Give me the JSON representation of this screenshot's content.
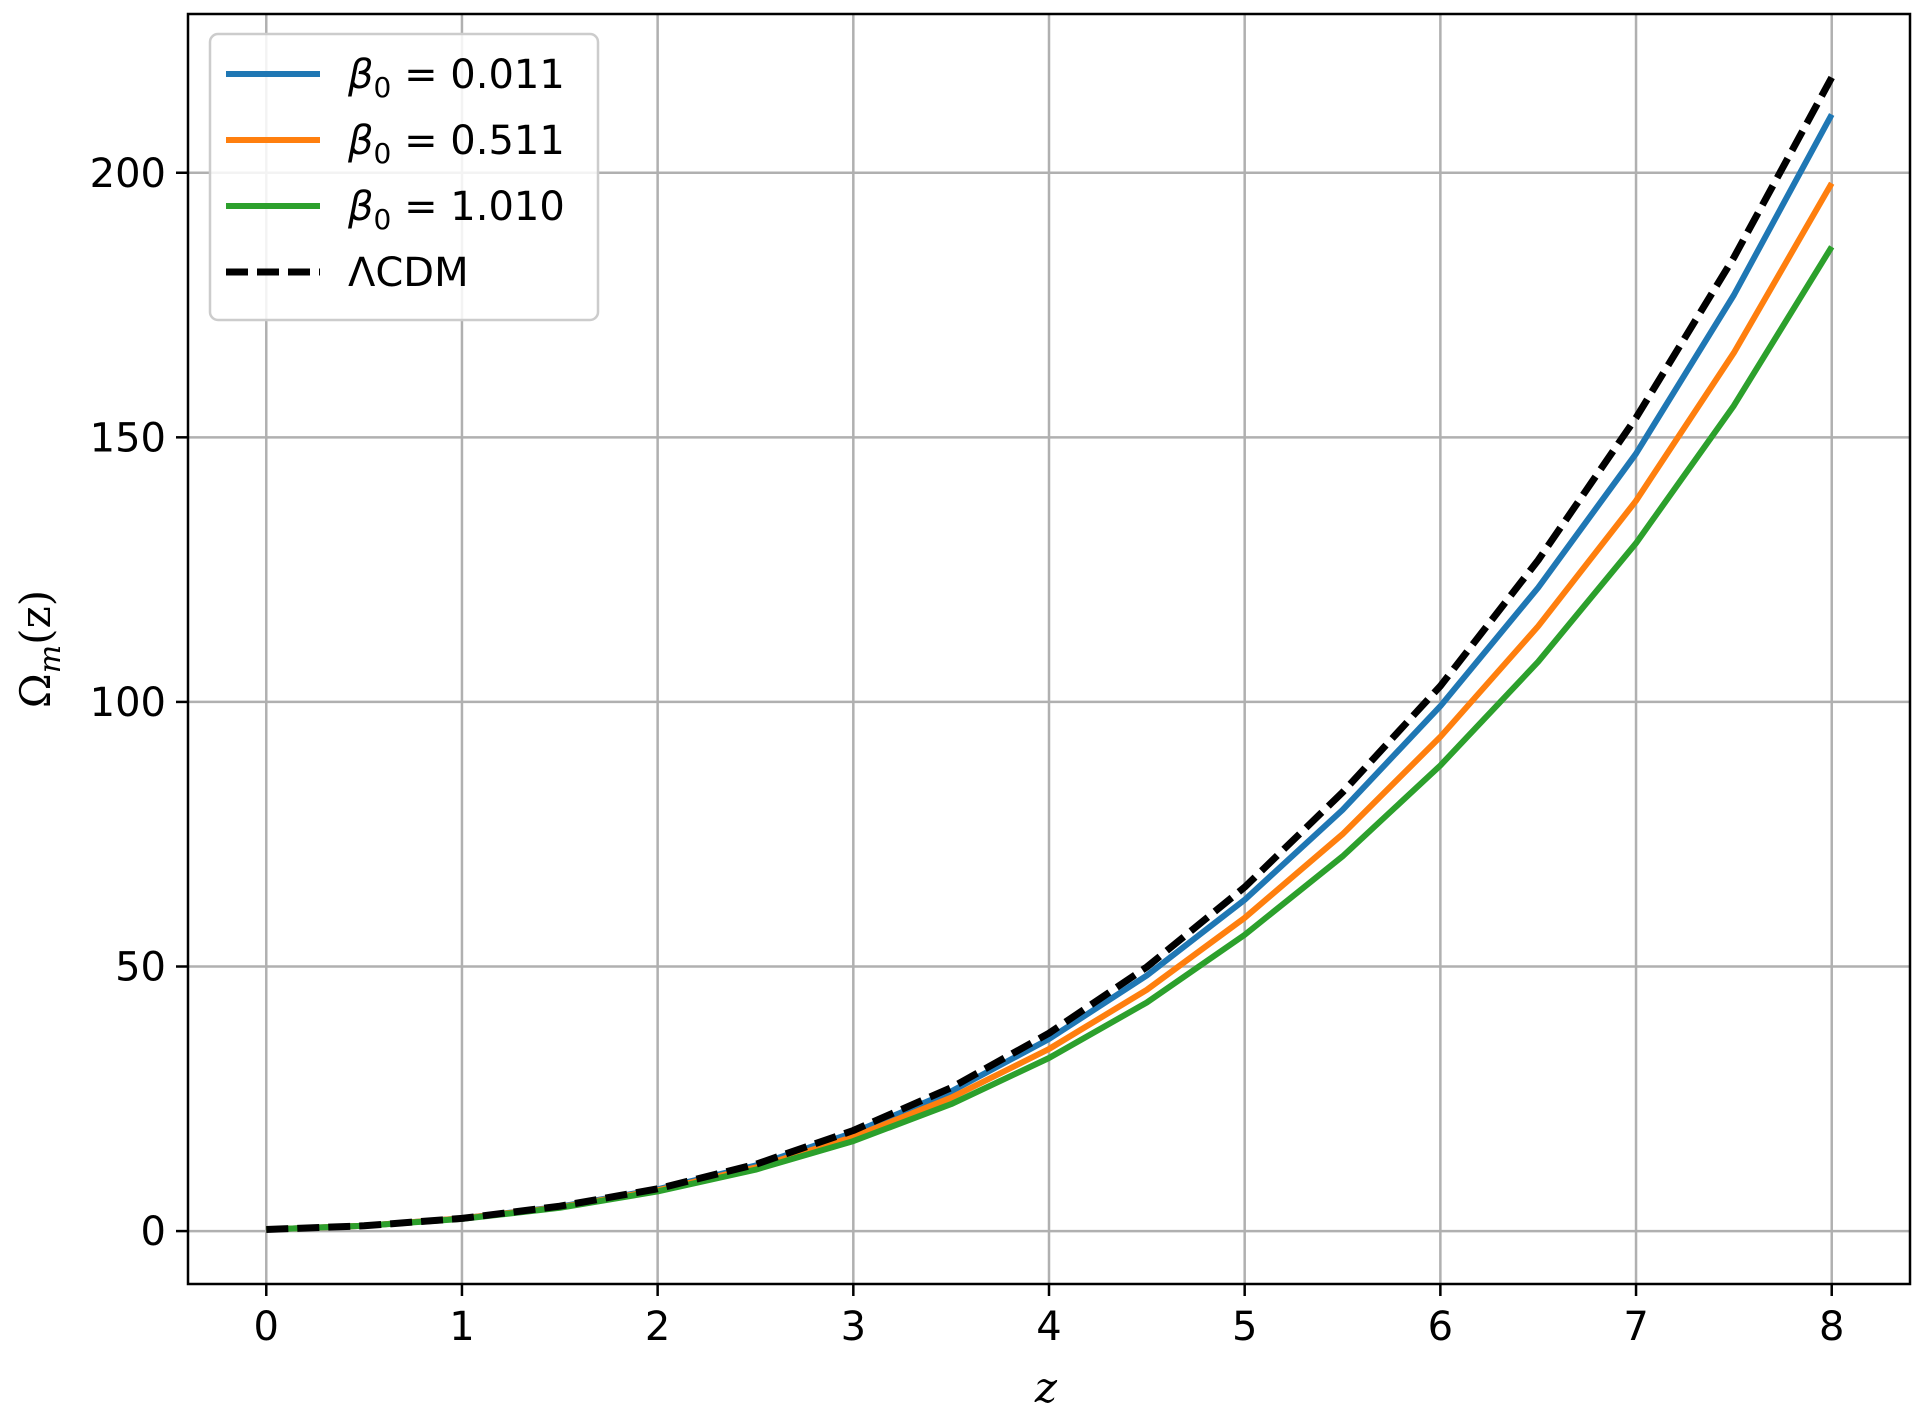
{
  "chart_data": {
    "type": "line",
    "xlabel": "z",
    "ylabel": "Ω_m(z)",
    "xlim": [
      -0.4,
      8.4
    ],
    "ylim": [
      -10,
      230
    ],
    "xticks": [
      0,
      1,
      2,
      3,
      4,
      5,
      6,
      7,
      8
    ],
    "yticks": [
      0,
      50,
      100,
      150,
      200
    ],
    "xtick_labels": [
      "0",
      "1",
      "2",
      "3",
      "4",
      "5",
      "6",
      "7",
      "8"
    ],
    "ytick_labels": [
      "0",
      "50",
      "100",
      "150",
      "200"
    ],
    "grid": true,
    "legend_position": "top-left",
    "x": [
      0,
      0.5,
      1,
      1.5,
      2,
      2.5,
      3,
      3.5,
      4,
      4.5,
      5,
      5.5,
      6,
      6.5,
      7,
      7.5,
      8
    ],
    "series": [
      {
        "name": "β₀ = 0.011",
        "legend_symbol": "β",
        "legend_sub": "0",
        "legend_value": " = 0.011",
        "color": "#1f77b4",
        "dashed": false,
        "values": [
          0.3,
          1.0,
          2.4,
          4.6,
          7.9,
          12.4,
          18.6,
          26.4,
          36.3,
          48.3,
          62.6,
          79.6,
          99.2,
          121.6,
          146.9,
          176.9,
          211.0
        ]
      },
      {
        "name": "β₀ = 0.511",
        "legend_symbol": "β",
        "legend_sub": "0",
        "legend_value": " = 0.511",
        "color": "#ff7f0e",
        "dashed": false,
        "values": [
          0.3,
          1.0,
          2.4,
          4.5,
          7.7,
          12.0,
          17.8,
          25.2,
          34.4,
          45.6,
          59.2,
          75.0,
          93.4,
          114.3,
          138.0,
          166.0,
          198.0
        ]
      },
      {
        "name": "β₀ = 1.010",
        "legend_symbol": "β",
        "legend_sub": "0",
        "legend_value": " = 1.010",
        "color": "#2ca02c",
        "dashed": false,
        "values": [
          0.3,
          1.0,
          2.3,
          4.4,
          7.5,
          11.6,
          17.0,
          24.0,
          32.7,
          43.2,
          56.0,
          70.8,
          88.0,
          107.6,
          130.0,
          156.0,
          186.0
        ]
      },
      {
        "name": "ΛCDM",
        "legend_symbol": "",
        "legend_sub": "",
        "legend_value": "ΛCDM",
        "color": "#000000",
        "dashed": true,
        "values": [
          0.3,
          1.0,
          2.4,
          4.7,
          8.0,
          12.6,
          19.0,
          27.1,
          37.4,
          49.9,
          65.0,
          82.9,
          103.0,
          126.8,
          153.7,
          184.0,
          218.0
        ]
      }
    ]
  }
}
